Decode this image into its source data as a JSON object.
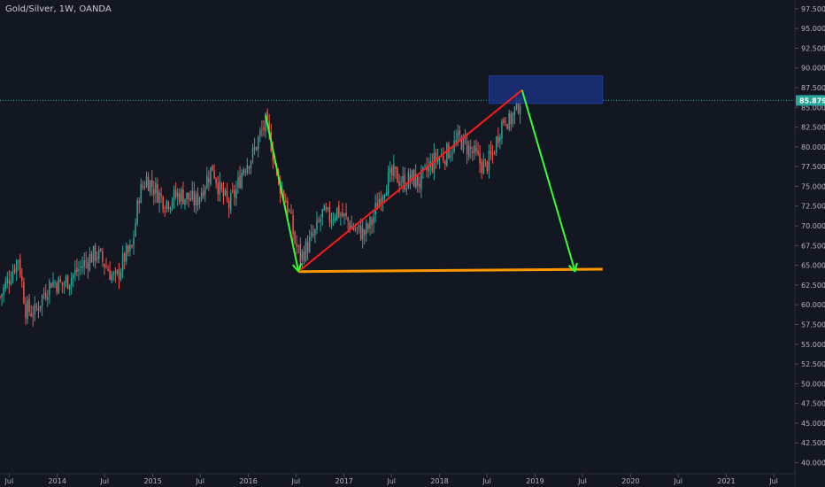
{
  "chart": {
    "title": "Gold/Silver, 1W, OANDA",
    "current_price_label": "85.879",
    "colors": {
      "background": "#131722",
      "up_candle": "#26a69a",
      "down_candle": "#ef5350",
      "price_line": "#26a69a",
      "price_label": "#26a69a",
      "rising_trendline": "#ff1a1a",
      "arrow": "#33ff33",
      "support_line": "#ff9800",
      "target_box": "#1a2f7a",
      "axis_text": "#b2b5be"
    }
  },
  "chart_data": {
    "type": "candlestick",
    "symbol": "Gold/Silver",
    "interval": "1W",
    "source": "OANDA",
    "y_range": [
      38.6,
      98.6
    ],
    "y_ticks": [
      "97.500",
      "95.000",
      "92.500",
      "90.000",
      "87.500",
      "85.000",
      "82.500",
      "80.000",
      "77.500",
      "75.000",
      "72.500",
      "70.000",
      "67.500",
      "65.000",
      "62.500",
      "60.000",
      "57.500",
      "55.000",
      "52.500",
      "50.000",
      "47.500",
      "45.000",
      "42.500",
      "40.000"
    ],
    "x_range": [
      "2013-05-27",
      "2021-09-20"
    ],
    "x_ticks": [
      {
        "label": "Jul",
        "date": "2013-07-01"
      },
      {
        "label": "2014",
        "date": "2014-01-01"
      },
      {
        "label": "Jul",
        "date": "2014-07-01"
      },
      {
        "label": "2015",
        "date": "2015-01-01"
      },
      {
        "label": "Jul",
        "date": "2015-07-01"
      },
      {
        "label": "2016",
        "date": "2016-01-01"
      },
      {
        "label": "Jul",
        "date": "2016-07-01"
      },
      {
        "label": "2017",
        "date": "2017-01-01"
      },
      {
        "label": "Jul",
        "date": "2017-07-01"
      },
      {
        "label": "2018",
        "date": "2018-01-01"
      },
      {
        "label": "Jul",
        "date": "2018-07-01"
      },
      {
        "label": "2019",
        "date": "2019-01-01"
      },
      {
        "label": "Jul",
        "date": "2019-07-01"
      },
      {
        "label": "2020",
        "date": "2020-01-01"
      },
      {
        "label": "Jul",
        "date": "2020-07-01"
      },
      {
        "label": "2021",
        "date": "2021-01-01"
      },
      {
        "label": "Jul",
        "date": "2021-07-01"
      }
    ],
    "close_path": [
      [
        "2013-05-27",
        61.0
      ],
      [
        "2013-07-01",
        63.5
      ],
      [
        "2013-08-05",
        66.0
      ],
      [
        "2013-09-02",
        59.5
      ],
      [
        "2013-10-07",
        59.0
      ],
      [
        "2013-11-04",
        61.0
      ],
      [
        "2013-12-09",
        63.0
      ],
      [
        "2014-01-20",
        62.5
      ],
      [
        "2014-03-10",
        64.0
      ],
      [
        "2014-05-05",
        66.0
      ],
      [
        "2014-06-02",
        66.5
      ],
      [
        "2014-07-14",
        64.5
      ],
      [
        "2014-08-11",
        63.0
      ],
      [
        "2014-09-15",
        66.0
      ],
      [
        "2014-10-13",
        67.0
      ],
      [
        "2014-11-10",
        74.0
      ],
      [
        "2014-12-08",
        76.0
      ],
      [
        "2015-01-12",
        74.5
      ],
      [
        "2015-02-16",
        73.0
      ],
      [
        "2015-03-16",
        73.5
      ],
      [
        "2015-04-13",
        74.0
      ],
      [
        "2015-05-18",
        73.5
      ],
      [
        "2015-06-15",
        73.0
      ],
      [
        "2015-07-20",
        75.5
      ],
      [
        "2015-08-17",
        77.5
      ],
      [
        "2015-09-14",
        74.5
      ],
      [
        "2015-10-19",
        72.5
      ],
      [
        "2015-11-16",
        74.5
      ],
      [
        "2015-12-14",
        77.5
      ],
      [
        "2016-01-18",
        79.0
      ],
      [
        "2016-02-15",
        81.5
      ],
      [
        "2016-03-07",
        83.0
      ],
      [
        "2016-03-28",
        80.5
      ],
      [
        "2016-04-25",
        75.5
      ],
      [
        "2016-05-16",
        74.0
      ],
      [
        "2016-06-06",
        71.5
      ],
      [
        "2016-06-27",
        68.0
      ],
      [
        "2016-07-18",
        66.0
      ],
      [
        "2016-08-15",
        67.5
      ],
      [
        "2016-09-12",
        69.0
      ],
      [
        "2016-10-10",
        71.5
      ],
      [
        "2016-11-07",
        71.0
      ],
      [
        "2016-12-05",
        72.0
      ],
      [
        "2017-01-16",
        70.5
      ],
      [
        "2017-02-13",
        69.5
      ],
      [
        "2017-03-20",
        69.0
      ],
      [
        "2017-04-17",
        70.5
      ],
      [
        "2017-05-15",
        73.5
      ],
      [
        "2017-06-12",
        75.5
      ],
      [
        "2017-07-10",
        76.5
      ],
      [
        "2017-08-14",
        75.5
      ],
      [
        "2017-09-18",
        76.0
      ],
      [
        "2017-10-16",
        75.5
      ],
      [
        "2017-11-13",
        77.0
      ],
      [
        "2017-12-18",
        78.5
      ],
      [
        "2018-01-22",
        79.0
      ],
      [
        "2018-02-19",
        80.0
      ],
      [
        "2018-03-19",
        81.0
      ],
      [
        "2018-04-16",
        80.0
      ],
      [
        "2018-05-14",
        79.0
      ],
      [
        "2018-06-04",
        78.0
      ],
      [
        "2018-06-25",
        77.5
      ],
      [
        "2018-07-23",
        79.0
      ],
      [
        "2018-08-20",
        82.5
      ],
      [
        "2018-09-10",
        84.0
      ],
      [
        "2018-09-24",
        83.0
      ],
      [
        "2018-10-15",
        84.5
      ],
      [
        "2018-11-05",
        85.9
      ]
    ],
    "annotations": {
      "horizontal_price_line": 85.879,
      "target_box": {
        "start": "2018-07-09",
        "end": "2019-09-16",
        "low": 85.5,
        "high": 89.0
      },
      "rising_trendline": [
        [
          "2016-07-11",
          64.2
        ],
        [
          "2018-11-12",
          87.2
        ]
      ],
      "support_line": [
        [
          "2016-07-11",
          64.2
        ],
        [
          "2019-09-16",
          64.5
        ]
      ],
      "arrow_down_1": [
        [
          "2016-03-07",
          84.0
        ],
        [
          "2016-07-11",
          64.2
        ]
      ],
      "arrow_down_2": [
        [
          "2018-11-12",
          87.2
        ],
        [
          "2019-06-03",
          64.2
        ]
      ]
    }
  }
}
